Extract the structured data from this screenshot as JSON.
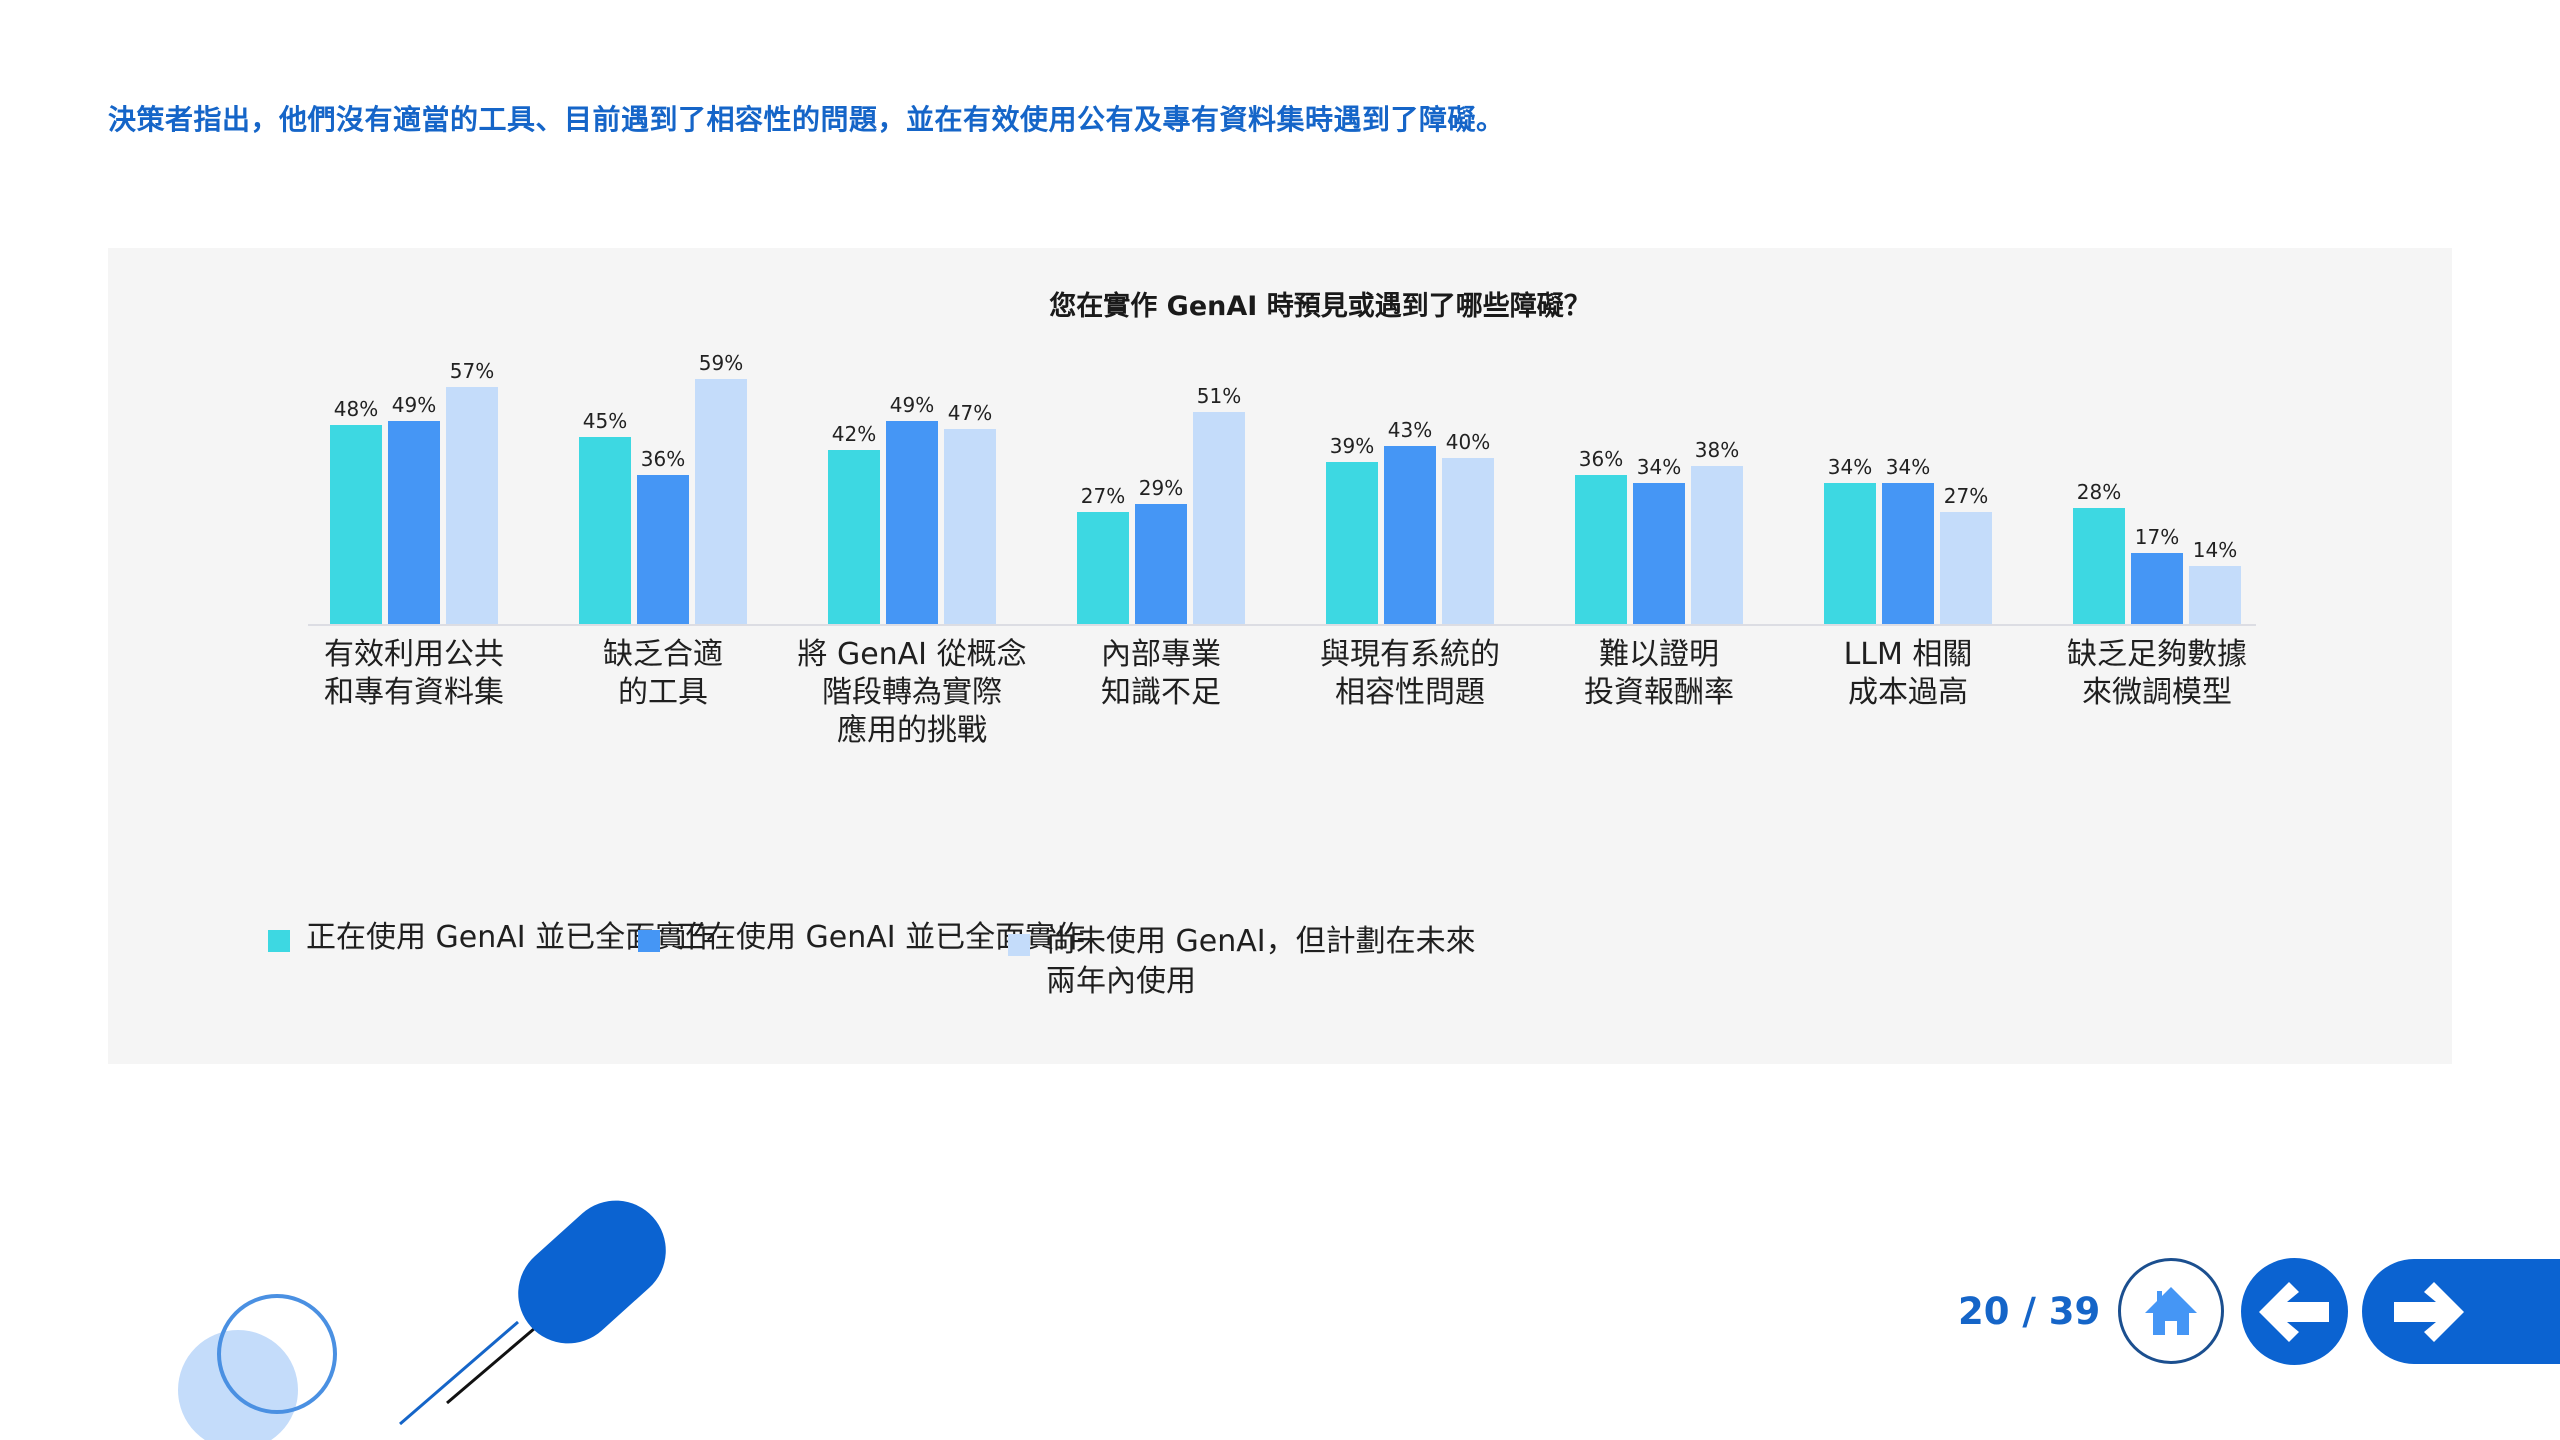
{
  "headline": "決策者指出，他們沒有適當的工具、目前遇到了相容性的問題，並在有效使用公有及專有資料集時遇到了障礙。",
  "chart_data": {
    "type": "bar",
    "title": "您在實作 GenAI 時預見或遇到了哪些障礙？",
    "xlabel": "",
    "ylabel": "",
    "ylim": [
      0,
      70
    ],
    "grid": false,
    "legend_position": "bottom",
    "categories": [
      "有效利用公共\n和專有資料集",
      "缺乏合適\n的工具",
      "將 GenAI 從概念\n階段轉為實際\n應用的挑戰",
      "內部專業\n知識不足",
      "與現有系統的\n相容性問題",
      "難以證明\n投資報酬率",
      "LLM 相關\n成本過高",
      "缺乏足夠數據\n來微調模型"
    ],
    "series": [
      {
        "name": "正在使用 GenAI 並已全面實作",
        "color": "#3dd8e2",
        "values": [
          48,
          45,
          42,
          27,
          39,
          36,
          34,
          28
        ]
      },
      {
        "name": "正在使用 GenAI 並已全面實作",
        "color": "#4596f5",
        "values": [
          49,
          36,
          49,
          29,
          43,
          34,
          34,
          17
        ]
      },
      {
        "name": "尚未使用 GenAI，但計劃在未來\n兩年內使用",
        "color": "#c4dcfa",
        "values": [
          57,
          59,
          47,
          51,
          40,
          38,
          27,
          14
        ]
      }
    ],
    "value_labels": [
      [
        "48%",
        "49%",
        "57%"
      ],
      [
        "45%",
        "36%",
        "59%"
      ],
      [
        "42%",
        "49%",
        "47%"
      ],
      [
        "27%",
        "29%",
        "51%"
      ],
      [
        "39%",
        "43%",
        "40%"
      ],
      [
        "36%",
        "34%",
        "38%"
      ],
      [
        "34%",
        "34%",
        "27%"
      ],
      [
        "28%",
        "17%",
        "14%"
      ]
    ]
  },
  "pagination": {
    "current": "20",
    "total": "39",
    "label": "20 / 39"
  },
  "nav": {
    "home_icon": "home-icon",
    "prev_icon": "arrow-left-icon",
    "next_icon": "arrow-right-icon"
  },
  "colors": {
    "accent": "#1565c8",
    "nav_blue": "#0b63d1",
    "panel_bg": "#f5f5f5",
    "home_icon": "#4596f5"
  }
}
